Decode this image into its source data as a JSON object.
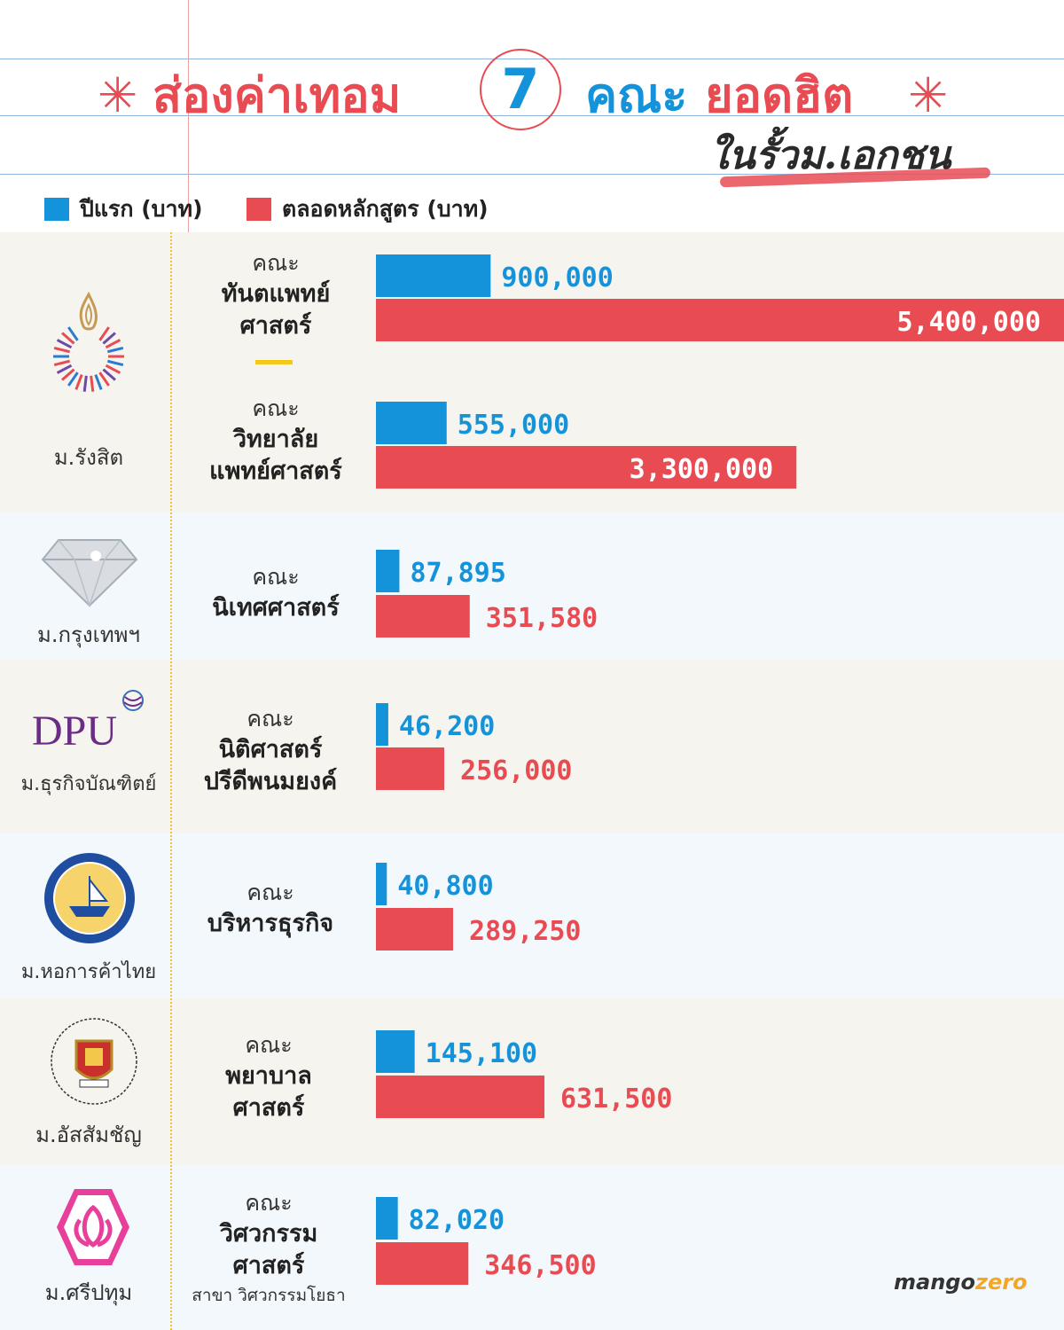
{
  "title": {
    "part_red": "ส่องค่าเทอม",
    "number": "7",
    "part_blue": "คณะ",
    "part_red2": "ยอดฮิต",
    "star": "✳",
    "subtitle": "ในรั้วม.เอกชน"
  },
  "legend": {
    "first_year": "ปีแรก (บาท)",
    "total": "ตลอดหลักสูตร (บาท)"
  },
  "colors": {
    "first_year": "#1493db",
    "total": "#e94b53",
    "band_a": "#f5f4ee",
    "band_b": "#f3f8fc",
    "accent": "#f3c71b"
  },
  "universities": [
    {
      "name": "ม.รังสิต",
      "logo_icon": "rangsit-flame-logo-icon"
    },
    {
      "name": "ม.กรุงเทพฯ",
      "logo_icon": "diamond-logo-icon"
    },
    {
      "name": "ม.ธุรกิจบัณฑิตย์",
      "logo_icon": "dpu-logo-icon",
      "logo_text": "DPU"
    },
    {
      "name": "ม.หอการค้าไทย",
      "logo_icon": "utcc-seal-icon"
    },
    {
      "name": "ม.อัสสัมชัญ",
      "logo_icon": "assumption-crest-icon"
    },
    {
      "name": "ม.ศรีปทุม",
      "logo_icon": "lotus-hexagon-logo-icon"
    }
  ],
  "faculties": [
    {
      "prefix": "คณะ",
      "name_1": "ทันตแพทย์",
      "name_2": "ศาสตร์"
    },
    {
      "prefix": "คณะ",
      "name_1": "วิทยาลัย",
      "name_2": "แพทย์ศาสตร์"
    },
    {
      "prefix": "คณะ",
      "name_1": "นิเทศศาสตร์"
    },
    {
      "prefix": "คณะ",
      "name_1": "นิติศาสตร์",
      "name_2": "ปรีดีพนมยงค์"
    },
    {
      "prefix": "คณะ",
      "name_1": "บริหารธุรกิจ"
    },
    {
      "prefix": "คณะ",
      "name_1": "พยาบาล",
      "name_2": "ศาสตร์"
    },
    {
      "prefix": "คณะ",
      "name_1": "วิศวกรรม",
      "name_2": "ศาสตร์",
      "note": "สาขา วิศวกรรมโยธา"
    }
  ],
  "chart_data": {
    "type": "bar",
    "orientation": "horizontal",
    "categories": [
      "ทันตแพทยศาสตร์ (ม.รังสิต)",
      "วิทยาลัยแพทยศาสตร์ (ม.รังสิต)",
      "นิเทศศาสตร์ (ม.กรุงเทพฯ)",
      "นิติศาสตร์ปรีดีพนมยงค์ (ม.ธุรกิจบัณฑิตย์)",
      "บริหารธุรกิจ (ม.หอการค้าไทย)",
      "พยาบาลศาสตร์ (ม.อัสสัมชัญ)",
      "วิศวกรรมศาสตร์ (ม.ศรีปทุม)"
    ],
    "series": [
      {
        "name": "ปีแรก (บาท)",
        "values": [
          900000,
          555000,
          87895,
          46200,
          40800,
          145100,
          82020
        ],
        "labels": [
          "900,000",
          "555,000",
          "87,895",
          "46,200",
          "40,800",
          "145,100",
          "82,020"
        ]
      },
      {
        "name": "ตลอดหลักสูตร (บาท)",
        "values": [
          5400000,
          3300000,
          351580,
          256000,
          289250,
          631500,
          346500
        ],
        "labels": [
          "5,400,000",
          "3,300,000",
          "351,580",
          "256,000",
          "289,250",
          "631,500",
          "346,500"
        ]
      }
    ],
    "notes": "Bars for the two Rangsit faculties are visually truncated/not to scale with the others."
  },
  "brand": {
    "main": "mango",
    "accent": "zero"
  }
}
